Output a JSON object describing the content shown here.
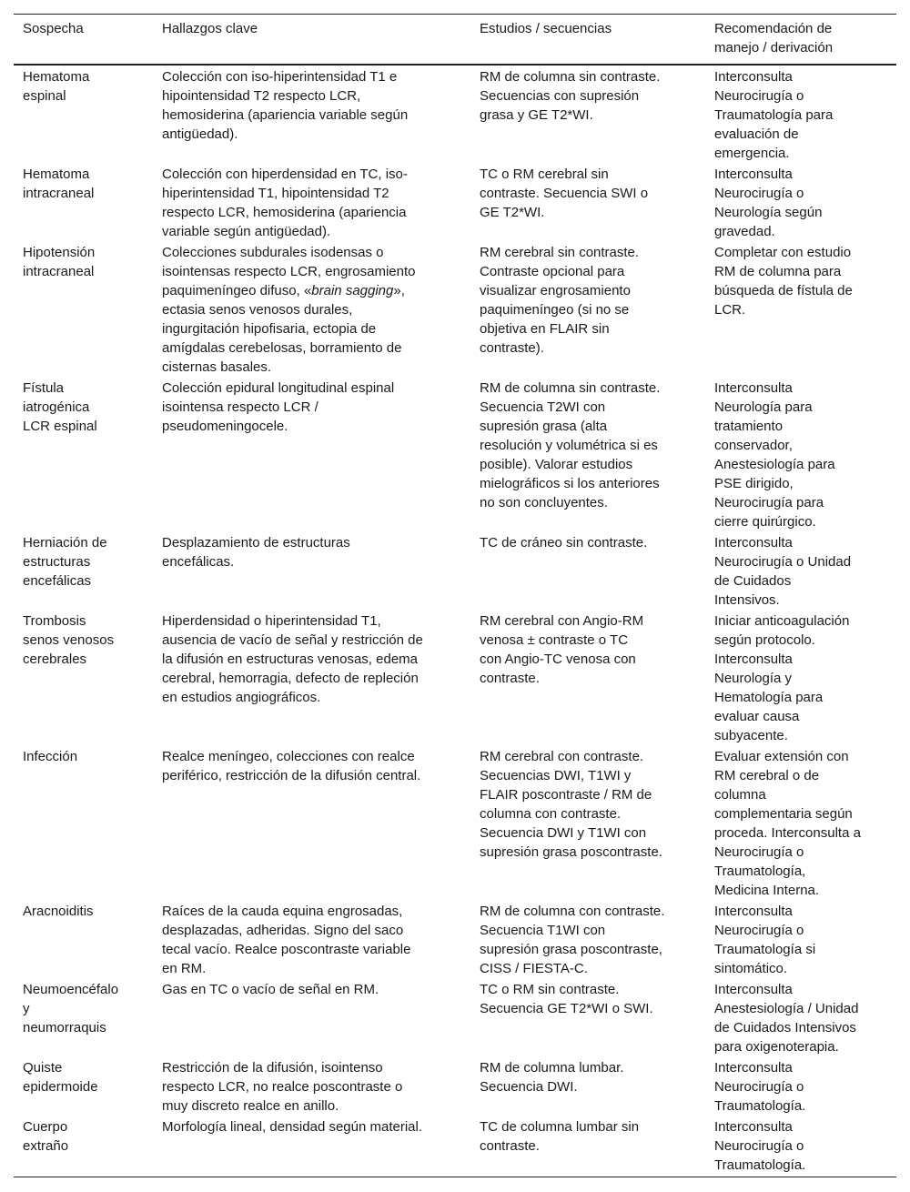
{
  "headers": [
    "Sospecha",
    "Hallazgos clave",
    "Estudios / secuencias",
    "Recomendación de\nmanejo / derivación"
  ],
  "rows": [
    {
      "sospecha": "Hematoma\nespinal",
      "hallazgos": "Colección con iso-hiperintensidad T1 e\nhipointensidad T2 respecto LCR,\nhemosiderina (apariencia variable según\nantigüedad).",
      "estudios": "RM de columna sin contraste.\nSecuencias con supresión\ngrasa y GE T2*WI.",
      "recomendacion": "Interconsulta\nNeurocirugía o\nTraumatología para\nevaluación de\nemergencia."
    },
    {
      "sospecha": "Hematoma\nintracraneal",
      "hallazgos": "Colección con hiperdensidad en TC, iso-\nhiperintensidad T1, hipointensidad T2\nrespecto LCR, hemosiderina (apariencia\nvariable según antigüedad).",
      "estudios": "TC o RM cerebral sin\ncontraste. Secuencia SWI o\nGE T2*WI.",
      "recomendacion": "Interconsulta\nNeurocirugía o\nNeurología según\ngravedad."
    },
    {
      "sospecha": "Hipotensión\nintracraneal",
      "hallazgos_pre": "Colecciones subdurales isodensas o\nisointensas respecto LCR, engrosamiento\npaquimeníngeo difuso, «",
      "hallazgos_italic": "brain sagging",
      "hallazgos_post": "»,\nectasia senos venosos durales,\ningurgitación hipofisaria, ectopia de\namígdalas cerebelosas, borramiento de\ncisternas basales.",
      "estudios": "RM cerebral sin contraste.\nContraste opcional para\nvisualizar engrosamiento\npaquimeníngeo (si no se\nobjetiva en FLAIR sin\ncontraste).",
      "recomendacion": "Completar con estudio\nRM de columna para\nbúsqueda de fístula de\nLCR."
    },
    {
      "sospecha": "Fístula\niatrogénica\nLCR espinal",
      "hallazgos": "Colección epidural longitudinal espinal\nisointensa respecto LCR /\npseudomeningocele.",
      "estudios": "RM de columna sin contraste.\nSecuencia T2WI con\nsupresión grasa (alta\nresolución y volumétrica si es\nposible). Valorar estudios\nmielográficos si los anteriores\nno son concluyentes.",
      "recomendacion": "Interconsulta\nNeurología para\ntratamiento\nconservador,\nAnestesiología para\nPSE dirigido,\nNeurocirugía para\ncierre quirúrgico."
    },
    {
      "sospecha": "Herniación de\nestructuras\nencefálicas",
      "hallazgos": "Desplazamiento de estructuras\nencefálicas.",
      "estudios": "TC de cráneo sin contraste.",
      "recomendacion": "Interconsulta\nNeurocirugía o Unidad\nde Cuidados\nIntensivos."
    },
    {
      "sospecha": "Trombosis\nsenos venosos\ncerebrales",
      "hallazgos": "Hiperdensidad o hiperintensidad T1,\nausencia de vacío de señal y restricción de\nla difusión en estructuras venosas, edema\ncerebral, hemorragia, defecto de repleción\nen estudios angiográficos.",
      "estudios": "RM cerebral con Angio-RM\nvenosa     ± contraste o TC\ncon Angio-TC venosa con\ncontraste.",
      "recomendacion": "Iniciar anticoagulación\nsegún protocolo.\nInterconsulta\nNeurología y\nHematología para\nevaluar causa\nsubyacente."
    },
    {
      "sospecha": "Infección",
      "hallazgos": "Realce meníngeo, colecciones con realce\nperiférico, restricción de la difusión central.",
      "estudios": "RM cerebral con contraste.\nSecuencias DWI, T1WI y\nFLAIR poscontraste / RM de\ncolumna con contraste.\nSecuencia DWI y T1WI con\nsupresión grasa poscontraste.",
      "recomendacion": "Evaluar extensión con\nRM cerebral o de\ncolumna\ncomplementaria según\nproceda. Interconsulta a\nNeurocirugía o\nTraumatología,\nMedicina Interna."
    },
    {
      "sospecha": "Aracnoiditis",
      "hallazgos": "Raíces de la cauda equina engrosadas,\ndesplazadas, adheridas. Signo del saco\ntecal vacío. Realce poscontraste variable\nen RM.",
      "estudios": "RM de columna con contraste.\nSecuencia T1WI con\nsupresión grasa poscontraste,\nCISS / FIESTA-C.",
      "recomendacion": "Interconsulta\nNeurocirugía o\nTraumatología si\nsintomático."
    },
    {
      "sospecha": "Neumoencéfalo\ny\nneumorraquis",
      "hallazgos": "Gas en TC o vacío de señal en RM.",
      "estudios": "TC o RM sin contraste.\nSecuencia GE T2*WI o SWI.",
      "recomendacion": "Interconsulta\nAnestesiología / Unidad\nde Cuidados Intensivos\npara oxigenoterapia."
    },
    {
      "sospecha": "Quiste\nepidermoide",
      "hallazgos": "Restricción de la difusión, isointenso\nrespecto LCR, no realce poscontraste o\nmuy discreto realce en anillo.",
      "estudios": "RM de columna lumbar.\nSecuencia DWI.",
      "recomendacion": "Interconsulta\nNeurocirugía o\nTraumatología."
    },
    {
      "sospecha": "Cuerpo\nextraño",
      "hallazgos": "Morfología lineal, densidad según material.",
      "estudios": "TC de columna lumbar sin\ncontraste.",
      "recomendacion": "Interconsulta\nNeurocirugía o\nTraumatología."
    }
  ]
}
